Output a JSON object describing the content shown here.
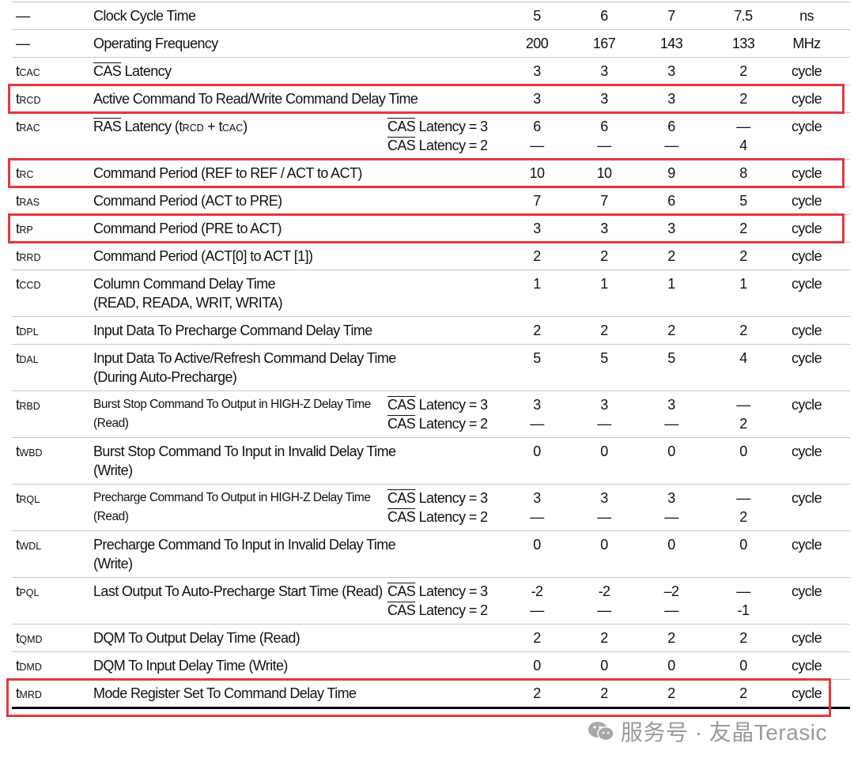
{
  "table": {
    "rows": [
      {
        "symbol": {
          "main": "—"
        },
        "desc": [
          [
            {
              "text": "Clock Cycle Time"
            }
          ]
        ],
        "values": [
          [
            5
          ],
          [
            6
          ],
          [
            7
          ],
          [
            7.5
          ]
        ],
        "unit": "ns"
      },
      {
        "symbol": {
          "main": "—"
        },
        "desc": [
          [
            {
              "text": "Operating Frequency"
            }
          ]
        ],
        "values": [
          [
            200
          ],
          [
            167
          ],
          [
            143
          ],
          [
            133
          ]
        ],
        "unit": "MHz"
      },
      {
        "symbol": {
          "main": "t",
          "sub": "CAC"
        },
        "desc": [
          [
            {
              "text": "CAS",
              "style": "over"
            },
            {
              "text": " Latency"
            }
          ]
        ],
        "values": [
          [
            3
          ],
          [
            3
          ],
          [
            3
          ],
          [
            2
          ]
        ],
        "unit": "cycle"
      },
      {
        "symbol": {
          "main": "t",
          "sub": "RCD"
        },
        "desc": [
          [
            {
              "text": "Active Command To Read/Write Command Delay Time"
            }
          ]
        ],
        "values": [
          [
            3
          ],
          [
            3
          ],
          [
            3
          ],
          [
            2
          ]
        ],
        "unit": "cycle",
        "highlight": true
      },
      {
        "symbol": {
          "main": "t",
          "sub": "RAC"
        },
        "desc": [
          [
            {
              "text": "RAS",
              "style": "over"
            },
            {
              "text": " Latency (t"
            },
            {
              "text": "RCD",
              "style": "sub"
            },
            {
              "text": " + t"
            },
            {
              "text": "CAC",
              "style": "sub"
            },
            {
              "text": ")"
            }
          ]
        ],
        "cond": [
          [
            {
              "text": "CAS",
              "style": "over"
            },
            {
              "text": " Latency = 3"
            }
          ],
          [
            {
              "text": "CAS",
              "style": "over"
            },
            {
              "text": " Latency = 2"
            }
          ]
        ],
        "values": [
          [
            6,
            "—"
          ],
          [
            6,
            "—"
          ],
          [
            6,
            "—"
          ],
          [
            "—",
            4
          ]
        ],
        "unit": "cycle"
      },
      {
        "symbol": {
          "main": "t",
          "sub": "RC"
        },
        "desc": [
          [
            {
              "text": "Command Period (REF to REF / ACT to ACT)"
            }
          ]
        ],
        "values": [
          [
            10
          ],
          [
            10
          ],
          [
            9
          ],
          [
            8
          ]
        ],
        "unit": "cycle",
        "highlight": true
      },
      {
        "symbol": {
          "main": "t",
          "sub": "RAS"
        },
        "desc": [
          [
            {
              "text": "Command Period (ACT to PRE)"
            }
          ]
        ],
        "values": [
          [
            7
          ],
          [
            7
          ],
          [
            6
          ],
          [
            5
          ]
        ],
        "unit": "cycle"
      },
      {
        "symbol": {
          "main": "t",
          "sub": "RP"
        },
        "desc": [
          [
            {
              "text": "Command Period (PRE to ACT)"
            }
          ]
        ],
        "values": [
          [
            3
          ],
          [
            3
          ],
          [
            3
          ],
          [
            2
          ]
        ],
        "unit": "cycle",
        "highlight": true
      },
      {
        "symbol": {
          "main": "t",
          "sub": "RRD"
        },
        "desc": [
          [
            {
              "text": "Command Period (ACT[0] to ACT [1])"
            }
          ]
        ],
        "values": [
          [
            2
          ],
          [
            2
          ],
          [
            2
          ],
          [
            2
          ]
        ],
        "unit": "cycle"
      },
      {
        "symbol": {
          "main": "t",
          "sub": "CCD"
        },
        "desc": [
          [
            {
              "text": "Column Command Delay Time"
            }
          ],
          [
            {
              "text": "(READ, READA, WRIT, WRITA)"
            }
          ]
        ],
        "values": [
          [
            1
          ],
          [
            1
          ],
          [
            1
          ],
          [
            1
          ]
        ],
        "unit": "cycle"
      },
      {
        "symbol": {
          "main": "t",
          "sub": "DPL"
        },
        "desc": [
          [
            {
              "text": "Input Data To Precharge Command Delay Time"
            }
          ]
        ],
        "values": [
          [
            2
          ],
          [
            2
          ],
          [
            2
          ],
          [
            2
          ]
        ],
        "unit": "cycle"
      },
      {
        "symbol": {
          "main": "t",
          "sub": "DAL"
        },
        "desc": [
          [
            {
              "text": "Input Data To Active/Refresh Command Delay Time"
            }
          ],
          [
            {
              "text": "(During Auto-Precharge)"
            }
          ]
        ],
        "values": [
          [
            5
          ],
          [
            5
          ],
          [
            5
          ],
          [
            4
          ]
        ],
        "unit": "cycle"
      },
      {
        "symbol": {
          "main": "t",
          "sub": "RBD"
        },
        "small": true,
        "desc": [
          [
            {
              "text": "Burst Stop Command To Output in HIGH-Z Delay Time"
            }
          ],
          [
            {
              "text": "(Read)"
            }
          ]
        ],
        "cond": [
          [
            {
              "text": "CAS",
              "style": "over"
            },
            {
              "text": " Latency = 3"
            }
          ],
          [
            {
              "text": "CAS",
              "style": "over"
            },
            {
              "text": " Latency = 2"
            }
          ]
        ],
        "values": [
          [
            3,
            "—"
          ],
          [
            3,
            "—"
          ],
          [
            3,
            "—"
          ],
          [
            "—",
            2
          ]
        ],
        "unit": "cycle"
      },
      {
        "symbol": {
          "main": "t",
          "sub": "WBD"
        },
        "desc": [
          [
            {
              "text": "Burst Stop Command To Input in Invalid Delay Time"
            }
          ],
          [
            {
              "text": "(Write)"
            }
          ]
        ],
        "values": [
          [
            0
          ],
          [
            0
          ],
          [
            0
          ],
          [
            0
          ]
        ],
        "unit": "cycle"
      },
      {
        "symbol": {
          "main": "t",
          "sub": "RQL"
        },
        "small": true,
        "desc": [
          [
            {
              "text": "Precharge Command To Output in HIGH-Z Delay Time"
            }
          ],
          [
            {
              "text": "(Read)"
            }
          ]
        ],
        "cond": [
          [
            {
              "text": "CAS",
              "style": "over"
            },
            {
              "text": " Latency = 3"
            }
          ],
          [
            {
              "text": "CAS",
              "style": "over"
            },
            {
              "text": " Latency = 2"
            }
          ]
        ],
        "values": [
          [
            3,
            "—"
          ],
          [
            3,
            "—"
          ],
          [
            3,
            "—"
          ],
          [
            "—",
            2
          ]
        ],
        "unit": "cycle"
      },
      {
        "symbol": {
          "main": "t",
          "sub": "WDL"
        },
        "desc": [
          [
            {
              "text": "Precharge Command To Input in Invalid Delay Time"
            }
          ],
          [
            {
              "text": "(Write)"
            }
          ]
        ],
        "values": [
          [
            0
          ],
          [
            0
          ],
          [
            0
          ],
          [
            0
          ]
        ],
        "unit": "cycle"
      },
      {
        "symbol": {
          "main": "t",
          "sub": "PQL"
        },
        "desc": [
          [
            {
              "text": "Last Output To Auto-Precharge Start Time (Read)"
            }
          ]
        ],
        "cond": [
          [
            {
              "text": "CAS",
              "style": "over"
            },
            {
              "text": " Latency = 3"
            }
          ],
          [
            {
              "text": "CAS",
              "style": "over"
            },
            {
              "text": " Latency = 2"
            }
          ]
        ],
        "values": [
          [
            -2,
            "—"
          ],
          [
            -2,
            "—"
          ],
          [
            "–2",
            "—"
          ],
          [
            "—",
            -1
          ]
        ],
        "unit": "cycle"
      },
      {
        "symbol": {
          "main": "t",
          "sub": "QMD"
        },
        "desc": [
          [
            {
              "text": "DQM To Output Delay Time (Read)"
            }
          ]
        ],
        "values": [
          [
            2
          ],
          [
            2
          ],
          [
            2
          ],
          [
            2
          ]
        ],
        "unit": "cycle"
      },
      {
        "symbol": {
          "main": "t",
          "sub": "DMD"
        },
        "desc": [
          [
            {
              "text": "DQM To Input Delay Time (Write)"
            }
          ]
        ],
        "values": [
          [
            0
          ],
          [
            0
          ],
          [
            0
          ],
          [
            0
          ]
        ],
        "unit": "cycle"
      },
      {
        "symbol": {
          "main": "t",
          "sub": "MRD"
        },
        "desc": [
          [
            {
              "text": "Mode Register Set To Command Delay Time"
            }
          ]
        ],
        "values": [
          [
            2
          ],
          [
            2
          ],
          [
            2
          ],
          [
            2
          ]
        ],
        "unit": "cycle",
        "highlight": true
      }
    ]
  },
  "watermark": "服务号 · 友晶Terasic"
}
